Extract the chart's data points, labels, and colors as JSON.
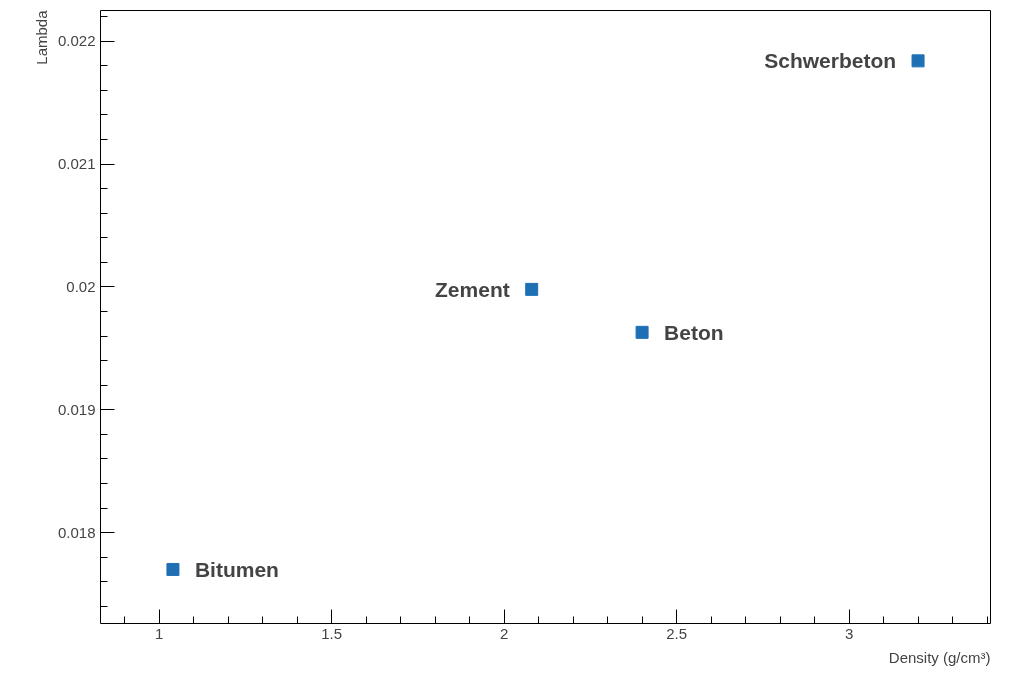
{
  "chart_data": {
    "type": "scatter",
    "xlabel": "Density (g/cm³)",
    "ylabel": "Lambda",
    "x": [
      1.04,
      2.08,
      2.4,
      3.2
    ],
    "values": [
      0.0177,
      0.01998,
      0.01963,
      0.02184
    ],
    "color": "#1f6fb5",
    "marker": "square",
    "grid": false,
    "xlim": [
      0.83,
      3.41
    ],
    "xticks": [
      1,
      1.5,
      2,
      2.5,
      3
    ],
    "ylim": [
      0.01726,
      0.02225
    ],
    "yticks": [
      0.018,
      0.019,
      0.02,
      0.021,
      0.022
    ],
    "annotations": [
      {
        "text": "Bitumen",
        "x": 1.04,
        "y": 0.0177
      },
      {
        "text": "Zement",
        "x": 2.08,
        "y": 0.01998
      },
      {
        "text": "Beton",
        "x": 2.4,
        "y": 0.01963
      },
      {
        "text": "Schwerbeton",
        "x": 3.2,
        "y": 0.02184
      }
    ]
  }
}
